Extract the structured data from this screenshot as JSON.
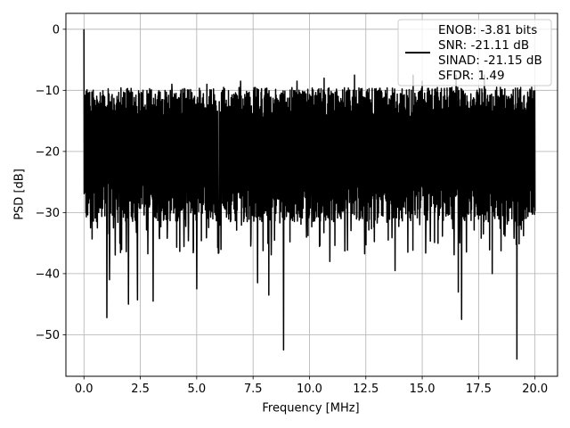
{
  "chart_data": {
    "type": "line",
    "title": "",
    "xlabel": "Frequency [MHz]",
    "ylabel": "PSD [dB]",
    "xlim": [
      -0.8,
      21.0
    ],
    "ylim": [
      -56.8,
      2.6
    ],
    "xticks": [
      0.0,
      2.5,
      5.0,
      7.5,
      10.0,
      12.5,
      15.0,
      17.5,
      20.0
    ],
    "xtick_labels": [
      "0.0",
      "2.5",
      "5.0",
      "7.5",
      "10.0",
      "12.5",
      "15.0",
      "17.5",
      "20.0"
    ],
    "yticks": [
      0,
      -10,
      -20,
      -30,
      -40,
      -50
    ],
    "ytick_labels": [
      "0",
      "−10",
      "−20",
      "−30",
      "−40",
      "−50"
    ],
    "grid": true,
    "legend": {
      "placement": "top-right",
      "entries": [
        "ENOB: -3.81 bits",
        "SNR: -21.11 dB",
        "SINAD: -21.15 dB",
        "SFDR: 1.49"
      ]
    },
    "series": [
      {
        "color": "#000000",
        "x_range": [
          0.0,
          20.0
        ],
        "sample_count": 2048,
        "band_upper_db": -12,
        "band_lower_db": -28,
        "peak": {
          "x": 0.0,
          "y": 0.0
        },
        "dips": [
          {
            "x": 1.02,
            "y": -47.2
          },
          {
            "x": 1.13,
            "y": -41.0
          },
          {
            "x": 1.97,
            "y": -45.0
          },
          {
            "x": 2.37,
            "y": -44.3
          },
          {
            "x": 3.07,
            "y": -44.5
          },
          {
            "x": 3.9,
            "y": -43.5
          },
          {
            "x": 5.0,
            "y": -42.5
          },
          {
            "x": 7.7,
            "y": -41.5
          },
          {
            "x": 8.2,
            "y": -43.5
          },
          {
            "x": 8.85,
            "y": -52.5
          },
          {
            "x": 10.9,
            "y": -38.0
          },
          {
            "x": 13.8,
            "y": -39.5
          },
          {
            "x": 16.6,
            "y": -43.0
          },
          {
            "x": 16.75,
            "y": -47.5
          },
          {
            "x": 18.1,
            "y": -40.0
          },
          {
            "x": 19.2,
            "y": -54.0
          }
        ],
        "spikes": [
          {
            "x": 0.2,
            "y": -10.5
          },
          {
            "x": 0.25,
            "y": -10.3
          },
          {
            "x": 3.9,
            "y": -9.0
          },
          {
            "x": 5.45,
            "y": -9.0
          },
          {
            "x": 6.95,
            "y": -8.5
          },
          {
            "x": 9.45,
            "y": -8.5
          },
          {
            "x": 10.65,
            "y": -8.0
          },
          {
            "x": 12.0,
            "y": -7.5
          },
          {
            "x": 14.6,
            "y": -7.5
          },
          {
            "x": 15.0,
            "y": -8.5
          },
          {
            "x": 16.5,
            "y": -7.5
          },
          {
            "x": 17.75,
            "y": -7.5
          },
          {
            "x": 18.3,
            "y": -9.5
          },
          {
            "x": 19.5,
            "y": -11.0
          }
        ]
      }
    ]
  }
}
